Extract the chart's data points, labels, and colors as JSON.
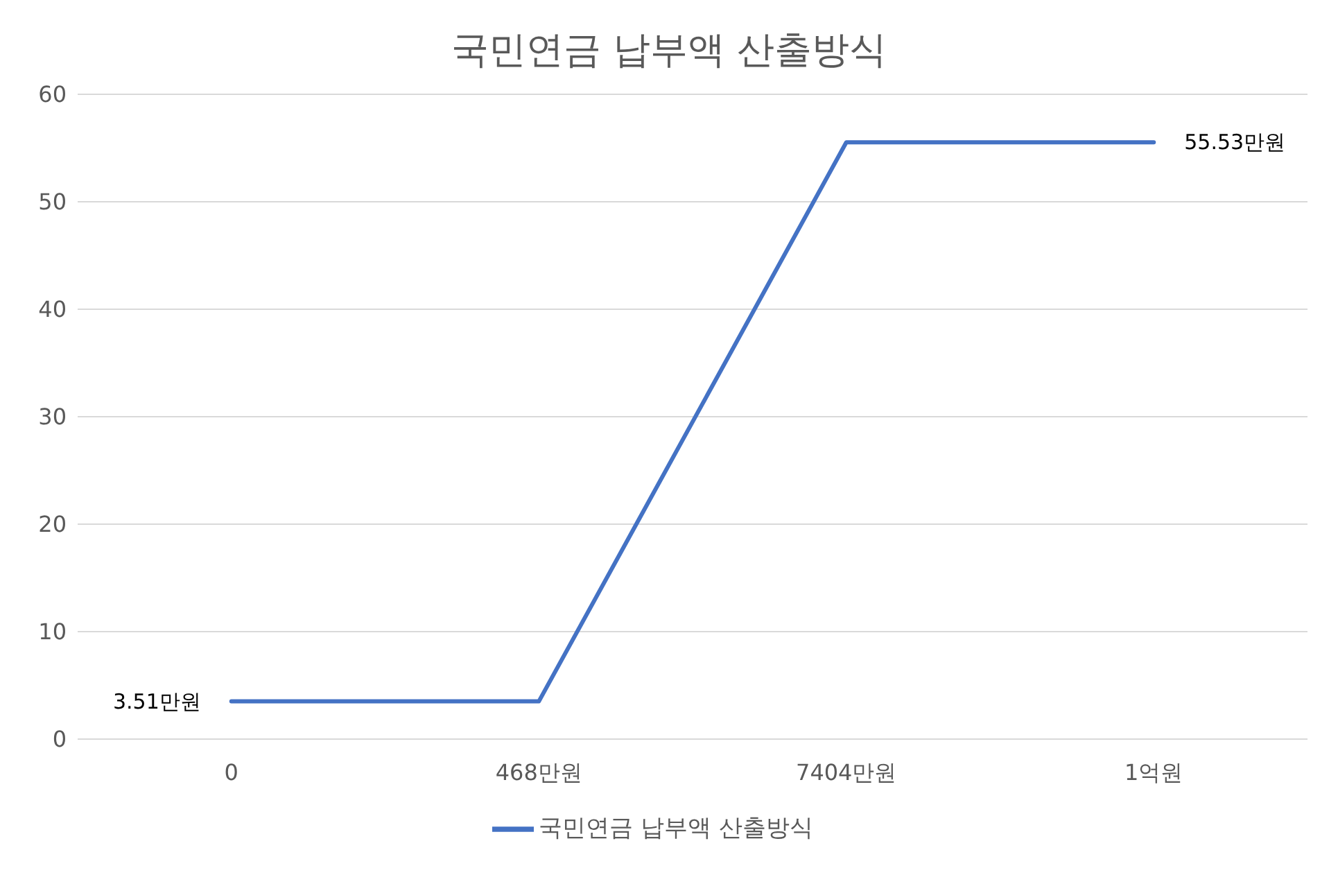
{
  "chart_data": {
    "type": "line",
    "title": "국민연금 납부액 산출방식",
    "categories": [
      "0",
      "468만원",
      "7404만원",
      "1억원"
    ],
    "series": [
      {
        "name": "국민연금 납부액 산출방식",
        "color": "#4472c4",
        "values": [
          3.51,
          3.51,
          55.53,
          55.53
        ],
        "value_labels": [
          "3.51만원",
          null,
          null,
          "55.53만원"
        ]
      }
    ],
    "ylim": [
      0,
      60
    ],
    "yticks": [
      0,
      10,
      20,
      30,
      40,
      50,
      60
    ],
    "grid": "y",
    "legend": "bottom",
    "marker": "none",
    "line_style": "solid"
  }
}
